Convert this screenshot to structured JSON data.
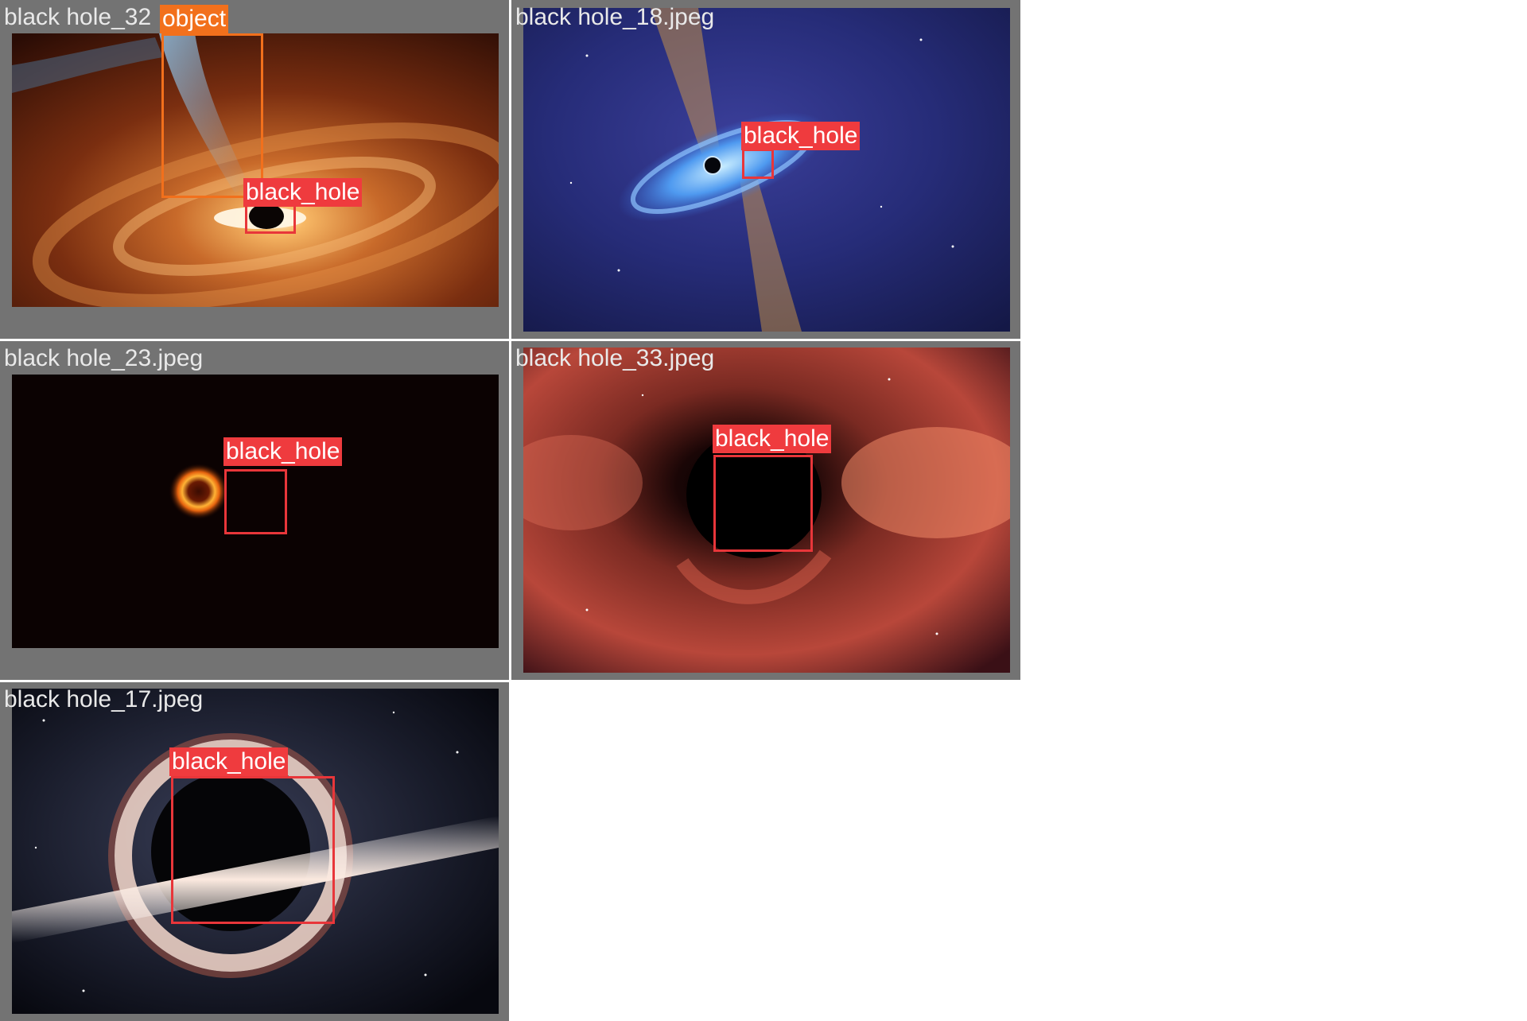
{
  "tiles": [
    {
      "filename": "black hole_32",
      "detections": [
        {
          "label": "object",
          "color": "#f2701c"
        },
        {
          "label": "black_hole",
          "color": "#ef3b3e"
        }
      ]
    },
    {
      "filename": "black hole_18.jpeg",
      "detections": [
        {
          "label": "black_hole",
          "color": "#ef3b3e"
        }
      ]
    },
    {
      "filename": "black hole_23.jpeg",
      "detections": [
        {
          "label": "black_hole",
          "color": "#ef3b3e"
        }
      ]
    },
    {
      "filename": "black hole_33.jpeg",
      "detections": [
        {
          "label": "black_hole",
          "color": "#ef3b3e"
        }
      ]
    },
    {
      "filename": "black hole_17.jpeg",
      "detections": [
        {
          "label": "black_hole",
          "color": "#ef3b3e"
        }
      ]
    }
  ],
  "colors": {
    "tile_border": "#737373",
    "page_bg": "#ffffff"
  }
}
